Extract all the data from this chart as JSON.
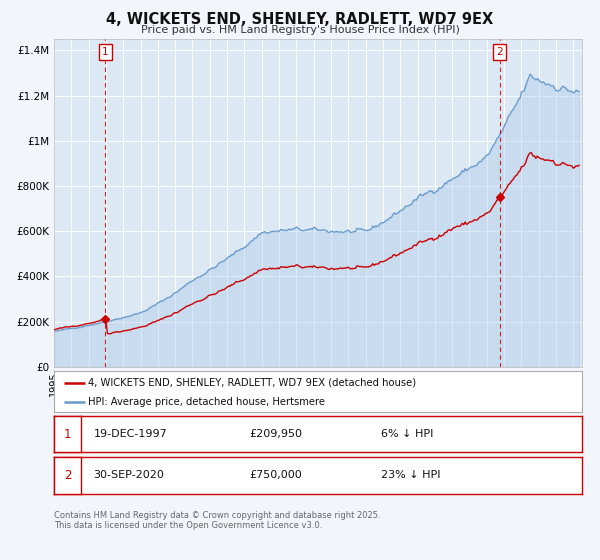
{
  "title": "4, WICKETS END, SHENLEY, RADLETT, WD7 9EX",
  "subtitle": "Price paid vs. HM Land Registry's House Price Index (HPI)",
  "bg_color": "#dce9f5",
  "outer_bg_color": "#f2f6fb",
  "red_line_color": "#cc0000",
  "blue_line_color": "#6699cc",
  "blue_fill_color": "#aac8e8",
  "marker_color": "#cc0000",
  "vline_color": "#cc0000",
  "ylim": [
    0,
    1450000
  ],
  "yticks": [
    0,
    200000,
    400000,
    600000,
    800000,
    1000000,
    1200000,
    1400000
  ],
  "ytick_labels": [
    "£0",
    "£200K",
    "£400K",
    "£600K",
    "£800K",
    "£1M",
    "£1.2M",
    "£1.4M"
  ],
  "xmin": 1995.0,
  "xmax": 2025.5,
  "sale1_x": 1997.97,
  "sale1_y": 209950,
  "sale2_x": 2020.75,
  "sale2_y": 750000,
  "legend_entries": [
    "4, WICKETS END, SHENLEY, RADLETT, WD7 9EX (detached house)",
    "HPI: Average price, detached house, Hertsmere"
  ],
  "table_rows": [
    [
      "1",
      "19-DEC-1997",
      "£209,950",
      "6% ↓ HPI"
    ],
    [
      "2",
      "30-SEP-2020",
      "£750,000",
      "23% ↓ HPI"
    ]
  ],
  "footer": "Contains HM Land Registry data © Crown copyright and database right 2025.\nThis data is licensed under the Open Government Licence v3.0."
}
